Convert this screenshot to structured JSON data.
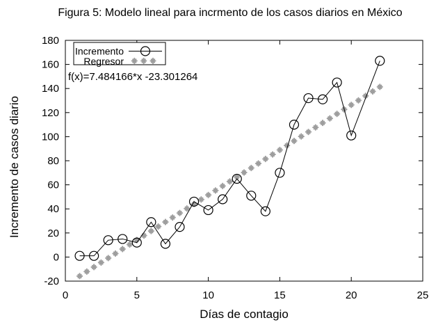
{
  "chart_data": {
    "type": "line",
    "title": "Figura 5: Modelo lineal para incrmento de los casos diarios en México",
    "xlabel": "Días de contagio",
    "ylabel": "Incremento de casos diario",
    "annotation": "f(x)=7.484166*x -23.301264",
    "xlim": [
      0,
      25
    ],
    "ylim": [
      -20,
      180
    ],
    "xticks": [
      0,
      5,
      10,
      15,
      20,
      25
    ],
    "yticks": [
      -20,
      0,
      20,
      40,
      60,
      80,
      100,
      120,
      140,
      160,
      180
    ],
    "grid": false,
    "legend_position": "top-left",
    "colors": {
      "incremento": "#000000",
      "regresor": "#9e9e9e",
      "axis": "#000000",
      "background": "#ffffff"
    },
    "series": [
      {
        "name": "Incremento",
        "style": "line-with-open-circles",
        "color": "#000000",
        "x": [
          1,
          2,
          3,
          4,
          5,
          6,
          7,
          8,
          9,
          10,
          11,
          12,
          13,
          14,
          15,
          16,
          17,
          18,
          19,
          20,
          22
        ],
        "y": [
          1,
          1,
          14,
          15,
          12,
          29,
          11,
          25,
          46,
          39,
          48,
          65,
          51,
          38,
          70,
          110,
          132,
          131,
          145,
          101,
          163
        ]
      },
      {
        "name": "Regresor",
        "style": "gray-stars",
        "color": "#9e9e9e",
        "equation": {
          "slope": 7.484166,
          "intercept": -23.301264
        },
        "x_start": 1,
        "x_end": 22,
        "x_step": 0.5
      }
    ]
  }
}
